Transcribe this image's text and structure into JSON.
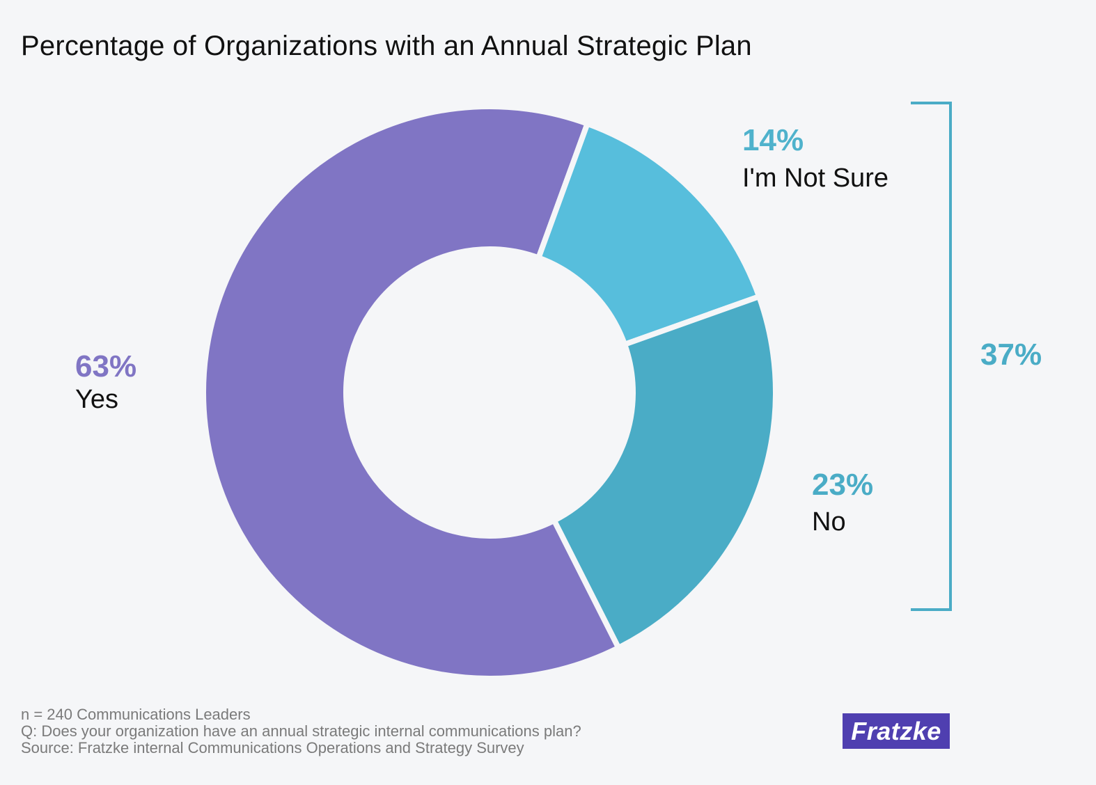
{
  "title": "Percentage of Organizations with an Annual Strategic Plan",
  "chart_data": {
    "type": "pie",
    "donut": true,
    "title": "Percentage of Organizations with an Annual Strategic Plan",
    "slices": [
      {
        "label": "Yes",
        "value": 63,
        "value_label": "63%",
        "color": "#8075c4",
        "label_color": "#8075c4"
      },
      {
        "label": "I'm Not Sure",
        "value": 14,
        "value_label": "14%",
        "color": "#57bedc",
        "label_color": "#4fb2cc"
      },
      {
        "label": "No",
        "value": 23,
        "value_label": "23%",
        "color": "#4aacc6",
        "label_color": "#4aacc6"
      }
    ],
    "bracket": {
      "covers": [
        "I'm Not Sure",
        "No"
      ],
      "value_label": "37%",
      "color": "#4aacc6"
    }
  },
  "footer": {
    "line1": "n = 240 Communications Leaders",
    "line2": "Q: Does your organization have an annual strategic internal communications plan?",
    "line3": "Source: Fratzke internal Communications Operations and Strategy Survey"
  },
  "logo": {
    "text": "Fratzke",
    "color": "#4f3fb0"
  }
}
